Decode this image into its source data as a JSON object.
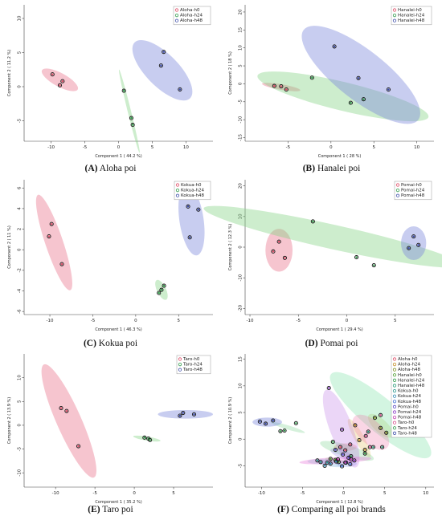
{
  "panels": [
    {
      "caption_letter": "(A)",
      "caption_text": "Aloha poi",
      "chart_data": {
        "type": "scatter",
        "xlabel": "Component 1 ( 44.2 %)",
        "ylabel": "Component 2 ( 11.2 %)",
        "xlim": [
          -14,
          14
        ],
        "ylim": [
          -8,
          12
        ],
        "xticks": [
          -10,
          -5,
          0,
          5,
          10
        ],
        "yticks": [
          -5,
          0,
          5,
          10
        ],
        "legend_position": "top-right",
        "series": [
          {
            "name": "Aloha-h0",
            "color": "#e0506a",
            "fill": "rgba(232,110,135,0.40)",
            "x": [
              -9.8,
              -8.3,
              -8.7
            ],
            "y": [
              1.8,
              0.8,
              0.2
            ],
            "ellipse": {
              "cx": -8.7,
              "cy": 1.0,
              "rx": 3.0,
              "ry": 1.0,
              "angle": -28
            }
          },
          {
            "name": "Aloha-h24",
            "color": "#2f9a4a",
            "fill": "rgba(130,210,130,0.40)",
            "x": [
              0.8,
              1.9,
              2.1
            ],
            "y": [
              -0.6,
              -4.6,
              -5.6
            ],
            "ellipse": {
              "cx": 1.6,
              "cy": -3.6,
              "rx": 6.3,
              "ry": 0.25,
              "angle": -76
            }
          },
          {
            "name": "Aloha-h48",
            "color": "#3a4aa8",
            "fill": "rgba(125,135,220,0.42)",
            "x": [
              6.7,
              6.3,
              9.1
            ],
            "y": [
              5.1,
              3.1,
              -0.4
            ],
            "ellipse": {
              "cx": 6.5,
              "cy": 2.4,
              "rx": 5.8,
              "ry": 2.4,
              "angle": -45
            }
          }
        ]
      }
    },
    {
      "caption_letter": "(B)",
      "caption_text": "Hanalei poi",
      "chart_data": {
        "type": "scatter",
        "xlabel": "Component 1 ( 28 %)",
        "ylabel": "Component 2 ( 18 %)",
        "xlim": [
          -10,
          12
        ],
        "ylim": [
          -16,
          22
        ],
        "xticks": [
          -5,
          0,
          5,
          10
        ],
        "yticks": [
          -15,
          -10,
          -5,
          0,
          5,
          10,
          15,
          20
        ],
        "legend_position": "top-right",
        "series": [
          {
            "name": "Hanalei-h0",
            "color": "#e0506a",
            "fill": "rgba(232,110,135,0.40)",
            "x": [
              -6.6,
              -5.8,
              -5.2
            ],
            "y": [
              -0.6,
              -0.7,
              -1.6
            ],
            "ellipse": {
              "cx": -5.8,
              "cy": -0.9,
              "rx": 2.4,
              "ry": 0.6,
              "angle": -22
            }
          },
          {
            "name": "Hanalei-h24",
            "color": "#2f9a4a",
            "fill": "rgba(130,210,130,0.40)",
            "x": [
              -2.2,
              2.3,
              3.8
            ],
            "y": [
              1.7,
              -5.3,
              -4.3
            ],
            "ellipse": {
              "cx": 1.4,
              "cy": -3.5,
              "rx": 11.5,
              "ry": 2.7,
              "angle": -30
            }
          },
          {
            "name": "Hanalei-h48",
            "color": "#3a4aa8",
            "fill": "rgba(125,135,220,0.42)",
            "x": [
              0.4,
              3.2,
              6.7
            ],
            "y": [
              10.4,
              1.6,
              -1.6
            ],
            "ellipse": {
              "cx": 3.5,
              "cy": 2.5,
              "rx": 14.2,
              "ry": 3.2,
              "angle": -62
            }
          }
        ]
      }
    },
    {
      "caption_letter": "(C)",
      "caption_text": "Kokua poi",
      "chart_data": {
        "type": "scatter",
        "xlabel": "Component 1 ( 46.3 %)",
        "ylabel": "Component 2 ( 11 %)",
        "xlim": [
          -13,
          9
        ],
        "ylim": [
          -6.3,
          6.8
        ],
        "xticks": [
          -10,
          -5,
          0,
          5
        ],
        "yticks": [
          -6,
          -4,
          -2,
          0,
          2,
          4,
          6
        ],
        "legend_position": "top-right",
        "series": [
          {
            "name": "Kokua-h0",
            "color": "#e0506a",
            "fill": "rgba(232,110,135,0.40)",
            "x": [
              -9.8,
              -10.1,
              -8.6
            ],
            "y": [
              2.5,
              1.3,
              -1.4
            ],
            "ellipse": {
              "cx": -9.5,
              "cy": 0.7,
              "rx": 5.0,
              "ry": 1.0,
              "angle": -68
            }
          },
          {
            "name": "Kokua-h24",
            "color": "#2f9a4a",
            "fill": "rgba(130,210,130,0.40)",
            "x": [
              3.3,
              3.0,
              2.7
            ],
            "y": [
              -3.5,
              -3.9,
              -4.2
            ],
            "ellipse": {
              "cx": 3.0,
              "cy": -3.9,
              "rx": 1.1,
              "ry": 0.5,
              "angle": -60
            }
          },
          {
            "name": "Kokua-h48",
            "color": "#3a4aa8",
            "fill": "rgba(125,135,220,0.42)",
            "x": [
              6.1,
              7.3,
              6.3
            ],
            "y": [
              4.2,
              3.9,
              1.2
            ],
            "ellipse": {
              "cx": 6.5,
              "cy": 2.9,
              "rx": 3.5,
              "ry": 1.4,
              "angle": -80
            }
          }
        ]
      }
    },
    {
      "caption_letter": "(D)",
      "caption_text": "Pomai poi",
      "chart_data": {
        "type": "scatter",
        "xlabel": "Component 1 ( 29.4 %)",
        "ylabel": "Component 2 ( 12.3 %)",
        "xlim": [
          -10.5,
          9
        ],
        "ylim": [
          -22,
          22
        ],
        "xticks": [
          -10,
          -5,
          0,
          5
        ],
        "yticks": [
          -20,
          -10,
          0,
          10,
          20
        ],
        "legend_position": "top-right",
        "series": [
          {
            "name": "Pomai-h0",
            "color": "#e0506a",
            "fill": "rgba(232,110,135,0.40)",
            "x": [
              -7.0,
              -6.4,
              -7.6
            ],
            "y": [
              1.8,
              -3.5,
              -1.4
            ],
            "ellipse": {
              "cx": -7.0,
              "cy": -1.0,
              "rx": 1.4,
              "ry": 7.0,
              "angle": 0
            }
          },
          {
            "name": "Pomai-h24",
            "color": "#2f9a4a",
            "fill": "rgba(130,210,130,0.40)",
            "x": [
              -3.5,
              1.0,
              2.8
            ],
            "y": [
              8.4,
              -3.3,
              -5.9
            ],
            "ellipse": {
              "cx": -1.5,
              "cy": 3.4,
              "rx": 16.2,
              "ry": 2.0,
              "angle": -35
            }
          },
          {
            "name": "Pomai-h48",
            "color": "#3a4aa8",
            "fill": "rgba(125,135,220,0.42)",
            "x": [
              6.4,
              7.4,
              6.9
            ],
            "y": [
              -0.3,
              0.7,
              3.5
            ],
            "ellipse": {
              "cx": 6.9,
              "cy": 1.3,
              "rx": 1.3,
              "ry": 5.5,
              "angle": 0
            }
          }
        ]
      }
    },
    {
      "caption_letter": "(E)",
      "caption_text": "Taro poi",
      "chart_data": {
        "type": "scatter",
        "xlabel": "Component 1 ( 35.2 %)",
        "ylabel": "Component 2 ( 13.9 %)",
        "xlim": [
          -14,
          10
        ],
        "ylim": [
          -13,
          15
        ],
        "xticks": [
          -10,
          -5,
          0,
          5
        ],
        "yticks": [
          -10,
          -5,
          0,
          5,
          10
        ],
        "legend_position": "top-right",
        "series": [
          {
            "name": "Taro-h0",
            "color": "#e0506a",
            "fill": "rgba(232,110,135,0.40)",
            "x": [
              -9.3,
              -8.6,
              -7.1
            ],
            "y": [
              3.6,
              3.0,
              -4.4
            ],
            "ellipse": {
              "cx": -8.3,
              "cy": 0.9,
              "rx": 12.3,
              "ry": 1.6,
              "angle": -75
            }
          },
          {
            "name": "Taro-h24",
            "color": "#2f9a4a",
            "fill": "rgba(130,210,130,0.40)",
            "x": [
              1.3,
              1.8,
              2.0
            ],
            "y": [
              -2.6,
              -2.8,
              -3.1
            ],
            "ellipse": {
              "cx": 1.6,
              "cy": -2.8,
              "rx": 1.8,
              "ry": 0.4,
              "angle": -15
            }
          },
          {
            "name": "Taro-h48",
            "color": "#3a4aa8",
            "fill": "rgba(125,135,220,0.42)",
            "x": [
              5.8,
              6.2,
              7.6
            ],
            "y": [
              2.0,
              2.6,
              2.3
            ],
            "ellipse": {
              "cx": 6.5,
              "cy": 2.3,
              "rx": 3.5,
              "ry": 0.9,
              "angle": 0
            }
          }
        ]
      }
    },
    {
      "caption_letter": "(F)",
      "caption_text": "Comparing all poi brands",
      "chart_data": {
        "type": "scatter",
        "xlabel": "Component 1 ( 12.8 %)",
        "ylabel": "Component 2 ( 10.9 %)",
        "xlim": [
          -12,
          11
        ],
        "ylim": [
          -9,
          16
        ],
        "xticks": [
          -10,
          -5,
          0,
          5,
          10
        ],
        "yticks": [
          -5,
          0,
          5,
          10,
          15
        ],
        "legend_position": "top-right",
        "series": [
          {
            "name": "Aloha-h0",
            "color": "#e0506a",
            "fill": "rgba(240,120,120,0.30)",
            "x": [
              -0.4,
              0.2,
              0.8
            ],
            "y": [
              -1.5,
              -2.1,
              -1.0
            ],
            "ellipse": {
              "cx": 0.2,
              "cy": -1.5,
              "rx": 1.4,
              "ry": 0.7,
              "angle": 0
            }
          },
          {
            "name": "Aloha-h24",
            "color": "#c38c22",
            "fill": "rgba(225,190,90,0.30)",
            "x": [
              1.4,
              1.9,
              2.6
            ],
            "y": [
              2.6,
              -0.2,
              -2.0
            ],
            "ellipse": {
              "cx": 1.9,
              "cy": 0.2,
              "rx": 3.8,
              "ry": 0.6,
              "angle": -70
            }
          },
          {
            "name": "Aloha-h48",
            "color": "#7b8a1a",
            "fill": "rgba(190,200,90,0.30)",
            "x": [
              3.8,
              4.5,
              5.2
            ],
            "y": [
              4.0,
              2.1,
              1.2
            ],
            "ellipse": {
              "cx": 4.5,
              "cy": 2.5,
              "rx": 2.5,
              "ry": 0.9,
              "angle": -55
            }
          },
          {
            "name": "Hanalei-h0",
            "color": "#4a9a2c",
            "fill": "rgba(140,200,100,0.30)",
            "x": [
              -1.6,
              -1.0,
              -0.6
            ],
            "y": [
              -3.7,
              -3.9,
              -4.3
            ],
            "ellipse": {
              "cx": -1.1,
              "cy": -4.0,
              "rx": 1.2,
              "ry": 0.4,
              "angle": -15
            }
          },
          {
            "name": "Hanalei-h24",
            "color": "#2f9a4a",
            "fill": "rgba(120,210,140,0.30)",
            "x": [
              -1.3,
              0.9,
              2.6
            ],
            "y": [
              -0.5,
              -3.2,
              -2.7
            ],
            "ellipse": {
              "cx": 0.4,
              "cy": -2.2,
              "rx": 3.6,
              "ry": 1.0,
              "angle": -25
            }
          },
          {
            "name": "Hanalei-h48",
            "color": "#2a9a7a",
            "fill": "rgba(130,225,170,0.35)",
            "x": [
              3.0,
              3.6,
              4.7
            ],
            "y": [
              1.4,
              -1.5,
              -1.5
            ],
            "ellipse": {
              "cx": 4.5,
              "cy": 4.5,
              "rx": 9.8,
              "ry": 2.3,
              "angle": -52
            }
          },
          {
            "name": "Kokua-h0",
            "color": "#25968c",
            "fill": "rgba(110,200,200,0.30)",
            "x": [
              -3.2,
              -2.8,
              -2.0
            ],
            "y": [
              -4.0,
              -4.3,
              -4.4
            ],
            "ellipse": {
              "cx": -2.6,
              "cy": -4.2,
              "rx": 1.8,
              "ry": 0.5,
              "angle": 0
            }
          },
          {
            "name": "Kokua-h24",
            "color": "#2a86b0",
            "fill": "rgba(110,170,220,0.30)",
            "x": [
              -2.3,
              -1.6,
              -0.9
            ],
            "y": [
              -5.0,
              -4.6,
              -4.2
            ],
            "ellipse": {
              "cx": -1.6,
              "cy": -4.6,
              "rx": 1.6,
              "ry": 0.5,
              "angle": -15
            }
          },
          {
            "name": "Kokua-h48",
            "color": "#3a6ad0",
            "fill": "rgba(125,150,235,0.30)",
            "x": [
              -0.2,
              0.3,
              0.8
            ],
            "y": [
              -5.1,
              -4.4,
              -4.7
            ],
            "ellipse": {
              "cx": 0.3,
              "cy": -4.6,
              "rx": 1.3,
              "ry": 0.6,
              "angle": 0
            }
          },
          {
            "name": "Pomai-h0",
            "color": "#5a4ac8",
            "fill": "rgba(150,130,230,0.30)",
            "x": [
              -1.0,
              -0.1,
              0.6
            ],
            "y": [
              -2.0,
              -2.9,
              -3.5
            ],
            "ellipse": {
              "cx": -0.2,
              "cy": -2.8,
              "rx": 1.6,
              "ry": 0.7,
              "angle": -30
            }
          },
          {
            "name": "Pomai-h24",
            "color": "#8a3ac8",
            "fill": "rgba(190,120,230,0.30)",
            "x": [
              -1.8,
              -0.2,
              1.3
            ],
            "y": [
              9.6,
              1.8,
              -4.0
            ],
            "ellipse": {
              "cx": -0.3,
              "cy": 2.0,
              "rx": 7.5,
              "ry": 1.4,
              "angle": -76
            }
          },
          {
            "name": "Pomai-h48",
            "color": "#c238b0",
            "fill": "rgba(230,110,215,0.35)",
            "x": [
              -0.7,
              0.2,
              0.9
            ],
            "y": [
              -3.8,
              -4.4,
              -3.8
            ],
            "ellipse": {
              "cx": -1.0,
              "cy": -4.0,
              "rx": 4.4,
              "ry": 0.6,
              "angle": 5
            }
          },
          {
            "name": "Taro-h0",
            "color": "#d8488a",
            "fill": "rgba(240,120,170,0.30)",
            "x": [
              3.2,
              4.5,
              2.7
            ],
            "y": [
              -1.5,
              4.5,
              0.6
            ],
            "ellipse": {
              "cx": 3.3,
              "cy": 1.3,
              "rx": 3.5,
              "ry": 1.6,
              "angle": -55
            }
          },
          {
            "name": "Taro-h24",
            "color": "#2f9a4a",
            "fill": "rgba(120,210,140,0.30)",
            "x": [
              -7.7,
              -7.2,
              -5.8
            ],
            "y": [
              1.5,
              1.6,
              3.0
            ],
            "ellipse": {
              "cx": -6.8,
              "cy": 2.2,
              "rx": 2.3,
              "ry": 0.35,
              "angle": -25
            }
          },
          {
            "name": "Taro-h48",
            "color": "#3a4aa8",
            "fill": "rgba(125,135,220,0.42)",
            "x": [
              -10.2,
              -9.5,
              -8.6
            ],
            "y": [
              3.3,
              2.9,
              3.5
            ],
            "ellipse": {
              "cx": -9.3,
              "cy": 3.2,
              "rx": 1.8,
              "ry": 0.85,
              "angle": 0
            }
          }
        ]
      }
    }
  ]
}
